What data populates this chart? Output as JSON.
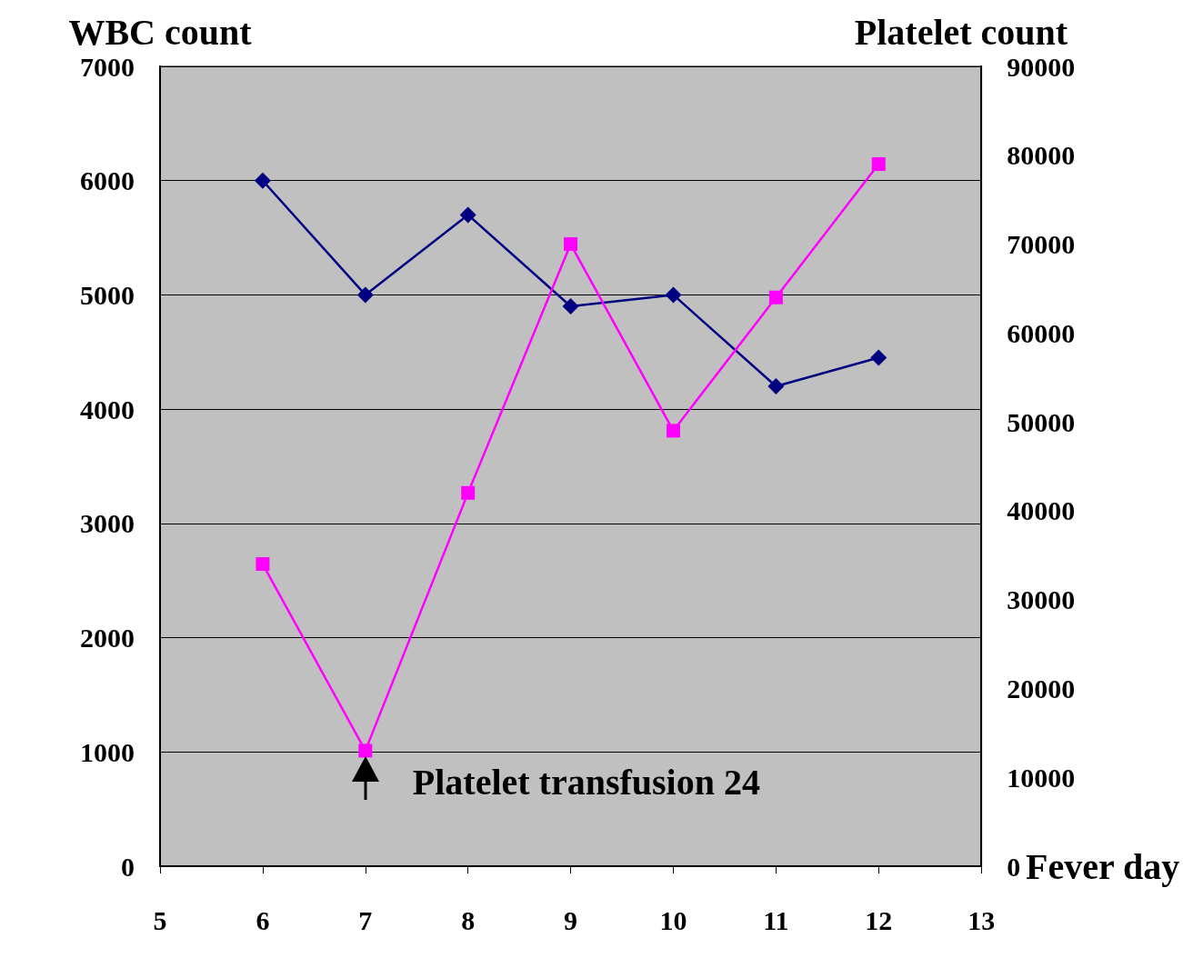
{
  "chart_data": {
    "type": "line",
    "xlabel": "Fever day",
    "ylabel": "WBC count",
    "y2label": "Platelet count",
    "x": [
      6,
      7,
      8,
      9,
      10,
      11,
      12
    ],
    "series": [
      {
        "color": "#000080",
        "marker": "diamond",
        "values": [
          6000,
          5000,
          5700,
          4900,
          5000,
          4200,
          4450
        ]
      },
      {
        "color": "#ff00ff",
        "marker": "square",
        "axis": "y2",
        "values": [
          34000,
          13000,
          42000,
          70000,
          49000,
          64000,
          79000
        ]
      }
    ],
    "xlim": [
      5,
      13
    ],
    "xticks": [
      5,
      6,
      7,
      8,
      9,
      10,
      11,
      12,
      13
    ],
    "ylim": [
      0,
      7000
    ],
    "yticks": [
      0,
      1000,
      2000,
      3000,
      4000,
      5000,
      6000,
      7000
    ],
    "y2lim": [
      0,
      90000
    ],
    "y2ticks": [
      0,
      10000,
      20000,
      30000,
      40000,
      50000,
      60000,
      70000,
      80000,
      90000
    ],
    "grid": "y",
    "line_style": "solid",
    "annotations": [
      {
        "text": "Platelet transfusion 24",
        "x": 7,
        "y": 940
      }
    ]
  }
}
